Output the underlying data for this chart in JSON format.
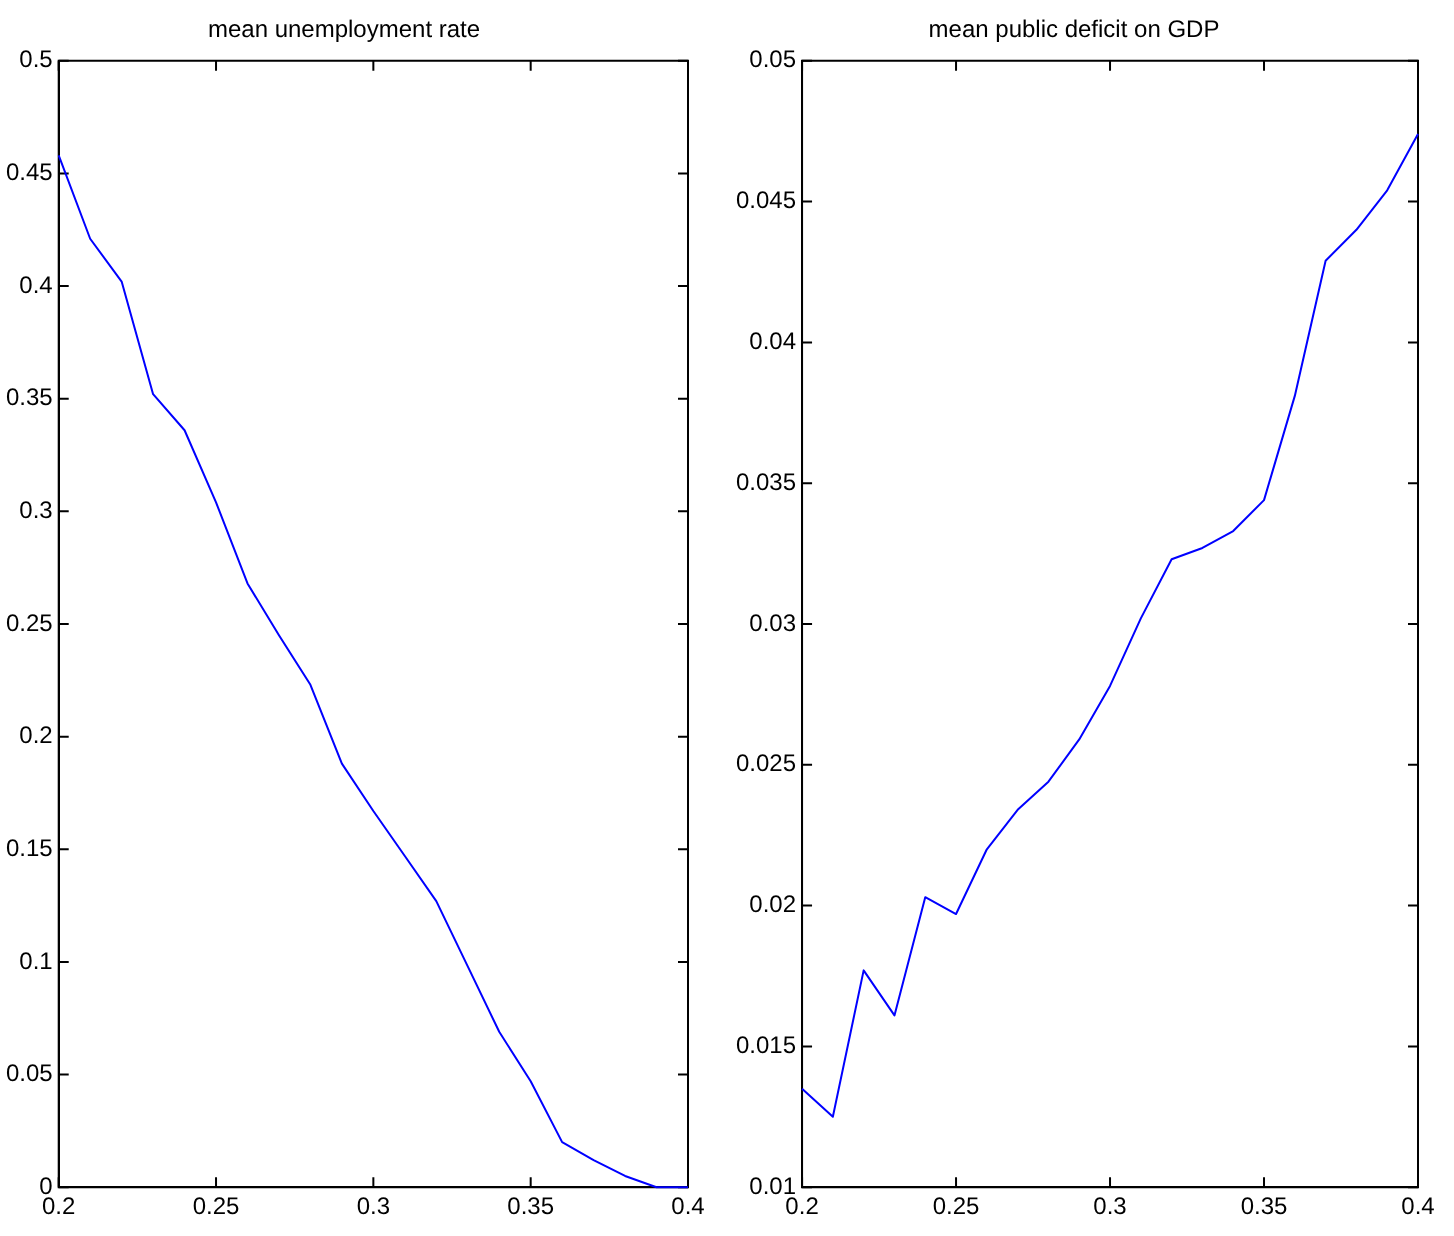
{
  "chart_data": [
    {
      "type": "line",
      "title": "mean unemployment rate",
      "x": [
        0.2,
        0.21,
        0.22,
        0.23,
        0.24,
        0.25,
        0.26,
        0.27,
        0.28,
        0.29,
        0.3,
        0.31,
        0.32,
        0.33,
        0.34,
        0.35,
        0.36,
        0.37,
        0.38,
        0.39,
        0.4
      ],
      "series": [
        {
          "color": "#0000ff",
          "values": [
            0.458,
            0.421,
            0.402,
            0.352,
            0.336,
            0.304,
            0.268,
            0.245,
            0.223,
            0.188,
            0.167,
            0.147,
            0.127,
            0.098,
            0.069,
            0.047,
            0.02,
            0.012,
            0.005,
            0,
            0
          ]
        }
      ],
      "xlim": [
        0.2,
        0.4
      ],
      "xticks": [
        0.2,
        0.25,
        0.3,
        0.35,
        0.4
      ],
      "ylim": [
        0,
        0.5
      ],
      "yticks": [
        0,
        0.05,
        0.1,
        0.15,
        0.2,
        0.25,
        0.3,
        0.35,
        0.4,
        0.45,
        0.5
      ],
      "grid": false,
      "legend": false
    },
    {
      "type": "line",
      "title": "mean public deficit on GDP",
      "x": [
        0.2,
        0.21,
        0.22,
        0.23,
        0.24,
        0.25,
        0.26,
        0.27,
        0.28,
        0.29,
        0.3,
        0.31,
        0.32,
        0.33,
        0.34,
        0.35,
        0.36,
        0.37,
        0.38,
        0.39,
        0.4
      ],
      "series": [
        {
          "color": "#0000ff",
          "values": [
            0.0135,
            0.0125,
            0.0177,
            0.0161,
            0.0203,
            0.0197,
            0.022,
            0.0234,
            0.0244,
            0.0259,
            0.0278,
            0.0302,
            0.0323,
            0.0327,
            0.0333,
            0.0344,
            0.0381,
            0.0429,
            0.044,
            0.0454,
            0.0474
          ]
        }
      ],
      "xlim": [
        0.2,
        0.4
      ],
      "xticks": [
        0.2,
        0.25,
        0.3,
        0.35,
        0.4
      ],
      "ylim": [
        0.01,
        0.05
      ],
      "yticks": [
        0.01,
        0.015,
        0.02,
        0.025,
        0.03,
        0.035,
        0.04,
        0.045,
        0.05
      ],
      "grid": false,
      "legend": false
    }
  ]
}
